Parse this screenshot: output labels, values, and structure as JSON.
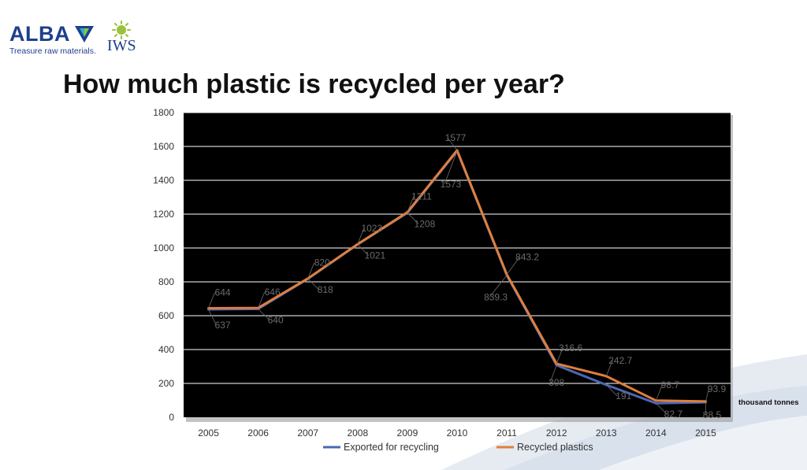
{
  "header": {
    "alba_name": "ALBA",
    "alba_tagline": "Treasure raw materials.",
    "iws_name": "IWS",
    "title": "How much plastic is recycled per year?"
  },
  "chart_data": {
    "type": "line",
    "title": "How much plastic is recycled per year?",
    "xlabel": "",
    "ylabel": "",
    "unit_note": "thousand tonnes",
    "x": [
      "2005",
      "2006",
      "2007",
      "2008",
      "2009",
      "2010",
      "2011",
      "2012",
      "2013",
      "2014",
      "2015"
    ],
    "ylim": [
      0,
      1800
    ],
    "yticks": [
      0,
      200,
      400,
      600,
      800,
      1000,
      1200,
      1400,
      1600,
      1800
    ],
    "grid": true,
    "legend_position": "bottom",
    "series": [
      {
        "name": "Exported for recycling",
        "color": "#4a68b5",
        "values": [
          637,
          640,
          818,
          1021,
          1208,
          1573,
          839.3,
          308,
          191,
          82.7,
          88.5
        ],
        "labels": [
          "637",
          "640",
          "818",
          "1021",
          "1208",
          "1573",
          "839.3",
          "308",
          "191",
          "82.7",
          "88.5"
        ]
      },
      {
        "name": "Recycled plastics",
        "color": "#e07f3c",
        "values": [
          644,
          646,
          820,
          1023,
          1211,
          1577,
          843.2,
          316.6,
          242.7,
          98.7,
          93.9
        ],
        "labels": [
          "644",
          "646",
          "820",
          "1023",
          "1211",
          "1577",
          "843.2",
          "316.6",
          "242.7",
          "98.7",
          "93.9"
        ]
      }
    ]
  }
}
